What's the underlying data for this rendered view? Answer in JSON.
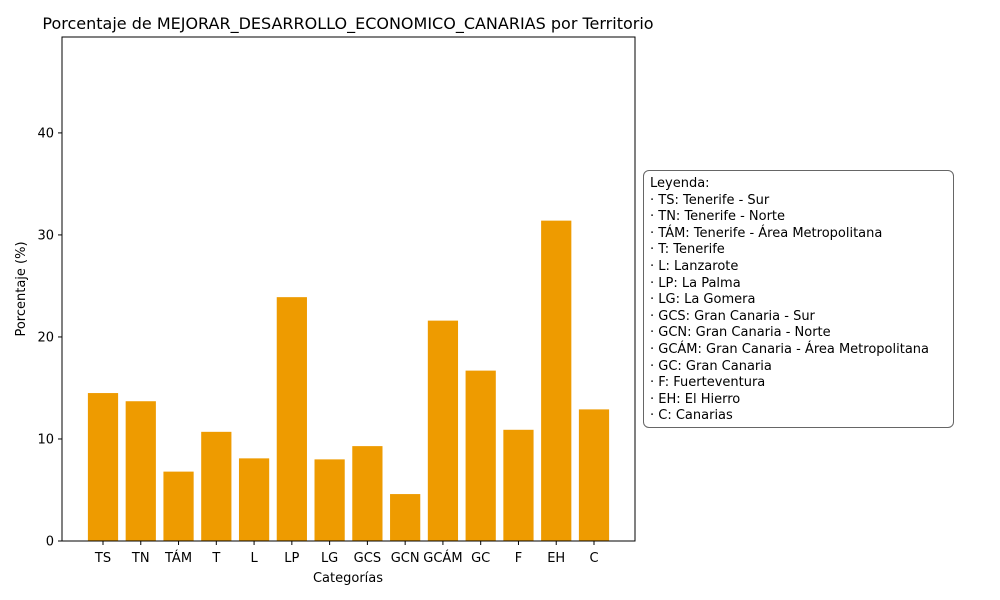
{
  "chart_data": {
    "type": "bar",
    "title": "Porcentaje de MEJORAR_DESARROLLO_ECONOMICO_CANARIAS por Territorio",
    "xlabel": "Categorías",
    "ylabel": "Porcentaje (%)",
    "categories": [
      "TS",
      "TN",
      "TÁM",
      "T",
      "L",
      "LP",
      "LG",
      "GCS",
      "GCN",
      "GCÁM",
      "GC",
      "F",
      "EH",
      "C"
    ],
    "values": [
      14.5,
      13.7,
      6.8,
      10.7,
      8.1,
      23.9,
      8.0,
      9.3,
      4.6,
      21.6,
      16.7,
      10.9,
      31.4,
      12.9
    ],
    "ylim": [
      0,
      49.4
    ],
    "yticks": [
      0,
      10,
      20,
      30,
      40
    ],
    "grid": false,
    "bar_color": "#EE9B00",
    "legend": {
      "title": "Leyenda:",
      "entries": [
        "· TS: Tenerife - Sur",
        "· TN: Tenerife - Norte",
        "· TÁM: Tenerife - Área Metropolitana",
        "· T: Tenerife",
        "· L: Lanzarote",
        "· LP: La Palma",
        "· LG: La Gomera",
        "· GCS: Gran Canaria - Sur",
        "· GCN: Gran Canaria - Norte",
        "· GCÁM: Gran Canaria - Área Metropolitana",
        "· GC: Gran Canaria",
        "· F: Fuerteventura",
        "· EH: El Hierro",
        "· C: Canarias"
      ],
      "placement": "right"
    }
  }
}
